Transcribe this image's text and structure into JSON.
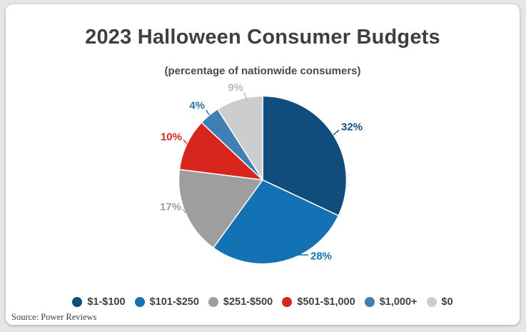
{
  "chart": {
    "title": "2023 Halloween Consumer Budgets",
    "subtitle": "(percentage of nationwide consumers)"
  },
  "chart_data": {
    "type": "pie",
    "title": "2023 Halloween Consumer Budgets",
    "subtitle": "(percentage of nationwide consumers)",
    "unit": "%",
    "start_angle_deg": 0,
    "direction": "clockwise",
    "legend_position": "bottom",
    "slices": [
      {
        "label": "$1-$100",
        "value": 32,
        "data_label": "32%",
        "color": "#104d7c",
        "label_color": "#104d7c"
      },
      {
        "label": "$101-$250",
        "value": 28,
        "data_label": "28%",
        "color": "#1272b4",
        "label_color": "#1272b4"
      },
      {
        "label": "$251-$500",
        "value": 17,
        "data_label": "17%",
        "color": "#9e9e9e",
        "label_color": "#9e9e9e"
      },
      {
        "label": "$501-$1,000",
        "value": 10,
        "data_label": "10%",
        "color": "#d8251e",
        "label_color": "#d8251e"
      },
      {
        "label": "$1,000+",
        "value": 4,
        "data_label": "4%",
        "color": "#3e80b4",
        "label_color": "#2d71a9"
      },
      {
        "label": "$0",
        "value": 9,
        "data_label": "9%",
        "color": "#cbcdce",
        "label_color": "#b7b9bb"
      }
    ]
  },
  "footer": {
    "source_note": "Source: Power Reviews"
  }
}
